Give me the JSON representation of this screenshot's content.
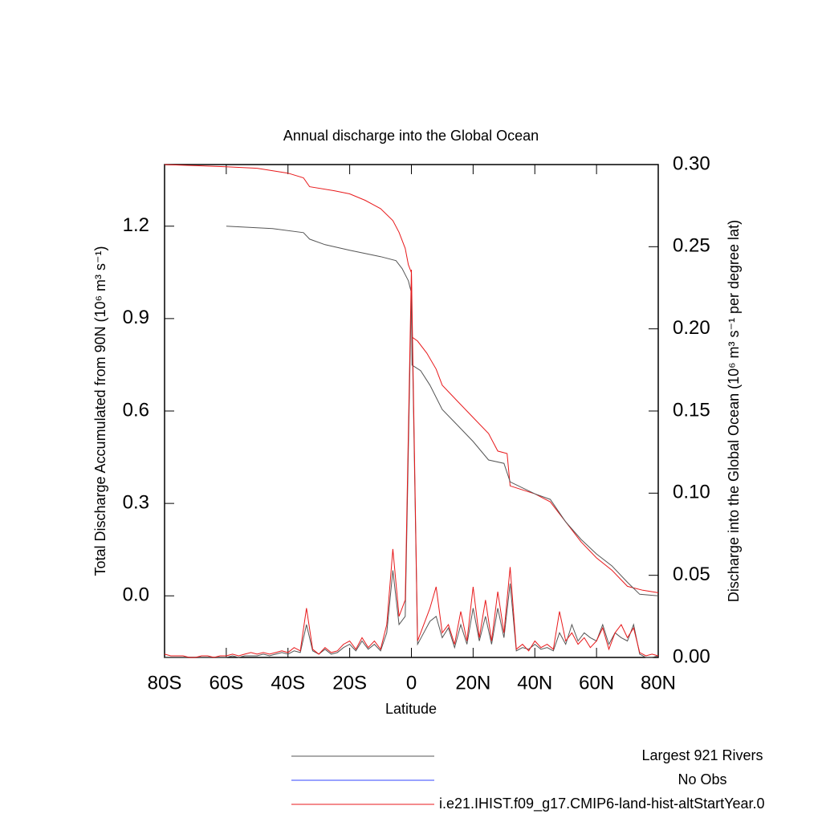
{
  "chart_data": {
    "type": "line",
    "title": "Annual discharge into the Global Ocean",
    "x_label": "Latitude",
    "y_label": "Total Discharge Accumulated from 90N (10⁶ m³ s⁻¹)",
    "y2_label": "Discharge into the Global Ocean (10⁶ m³ s⁻¹ per degree lat)",
    "xlim": [
      -80,
      80
    ],
    "xticks": [
      {
        "value": -80,
        "label": "80S"
      },
      {
        "value": -60,
        "label": "60S"
      },
      {
        "value": -40,
        "label": "40S"
      },
      {
        "value": -20,
        "label": "20S"
      },
      0,
      {
        "value": 20,
        "label": "20N"
      },
      {
        "value": 40,
        "label": "40N"
      },
      {
        "value": 60,
        "label": "60N"
      },
      {
        "value": 80,
        "label": "80N"
      }
    ],
    "ylim": [
      -0.2,
      1.4
    ],
    "yticks": [
      {
        "value": 0,
        "label": "0.0"
      },
      0.3,
      0.6,
      0.9,
      1.2
    ],
    "y2lim": [
      0,
      0.3
    ],
    "y2ticks": [
      {
        "value": 0,
        "label": "0.00"
      },
      0.05,
      {
        "value": 0.1,
        "label": "0.10"
      },
      0.15,
      {
        "value": 0.2,
        "label": "0.20"
      },
      0.25,
      {
        "value": 0.3,
        "label": "0.30"
      }
    ],
    "legend": [
      {
        "name": "Largest 921 Rivers",
        "color": "#555555"
      },
      {
        "name": "No Obs",
        "color": "#3344ff"
      },
      {
        "name": "i.e21.IHIST.f09_g17.CMIP6-land-hist-altStartYear.0",
        "color": "#e8191b"
      }
    ],
    "series": [
      {
        "color": "#e8191b",
        "axis": "y",
        "x": [
          -80,
          -60,
          -50,
          -40,
          -35,
          -33,
          -25,
          -20,
          -15,
          -10,
          -6,
          -4,
          -2,
          -1,
          0,
          0.2,
          2,
          5,
          8,
          10,
          15,
          20,
          25,
          28,
          31,
          32,
          40,
          45,
          50,
          55,
          60,
          65,
          70,
          75,
          80
        ],
        "values": [
          1.4,
          1.393,
          1.388,
          1.372,
          1.357,
          1.328,
          1.315,
          1.305,
          1.284,
          1.257,
          1.218,
          1.18,
          1.128,
          1.075,
          1.049,
          0.84,
          0.827,
          0.788,
          0.736,
          0.684,
          0.631,
          0.579,
          0.527,
          0.47,
          0.462,
          0.357,
          0.331,
          0.305,
          0.24,
          0.175,
          0.123,
          0.083,
          0.031,
          0.018,
          0.01
        ]
      },
      {
        "color": "#555555",
        "axis": "y",
        "x": [
          -60,
          -45,
          -35,
          -33,
          -28,
          -20,
          -10,
          -5,
          -3,
          -1,
          0,
          0.2,
          3,
          6,
          10,
          15,
          20,
          25,
          30,
          32,
          40,
          45,
          50,
          55,
          60,
          65,
          70,
          74,
          80
        ],
        "values": [
          1.2,
          1.192,
          1.179,
          1.158,
          1.14,
          1.122,
          1.101,
          1.088,
          1.062,
          1.023,
          0.984,
          0.749,
          0.731,
          0.684,
          0.605,
          0.553,
          0.501,
          0.441,
          0.43,
          0.37,
          0.331,
          0.313,
          0.24,
          0.183,
          0.136,
          0.097,
          0.044,
          0.005,
          0
        ]
      },
      {
        "color": "#555555",
        "axis": "y2",
        "x": [
          -80,
          -78,
          -76,
          -74,
          -72,
          -70,
          -68,
          -66,
          -64,
          -62,
          -60,
          -58,
          -56,
          -54,
          -52,
          -50,
          -48,
          -46,
          -44,
          -42,
          -40,
          -38,
          -36,
          -34,
          -32,
          -30,
          -28,
          -26,
          -24,
          -22,
          -20,
          -18,
          -16,
          -14,
          -12,
          -10,
          -8,
          -6,
          -4,
          -2,
          0,
          2,
          4,
          6,
          8,
          10,
          12,
          14,
          16,
          18,
          20,
          22,
          24,
          26,
          28,
          30,
          32,
          34,
          36,
          38,
          40,
          42,
          44,
          46,
          48,
          50,
          52,
          54,
          56,
          58,
          60,
          62,
          64,
          66,
          68,
          70,
          72,
          74,
          76,
          78,
          80
        ],
        "values": [
          0,
          0,
          0,
          0,
          0,
          0,
          0,
          0,
          0,
          0,
          0,
          0.001,
          0,
          0.001,
          0.001,
          0.001,
          0.002,
          0.001,
          0.002,
          0.003,
          0.002,
          0.004,
          0.003,
          0.02,
          0.004,
          0.002,
          0.005,
          0.002,
          0.003,
          0.006,
          0.008,
          0.004,
          0.01,
          0.005,
          0.008,
          0.004,
          0.015,
          0.053,
          0.02,
          0.025,
          0.224,
          0.008,
          0.015,
          0.022,
          0.025,
          0.012,
          0.018,
          0.006,
          0.02,
          0.008,
          0.03,
          0.01,
          0.025,
          0.008,
          0.03,
          0.012,
          0.045,
          0.004,
          0.006,
          0.005,
          0.008,
          0.005,
          0.006,
          0.004,
          0.015,
          0.008,
          0.02,
          0.01,
          0.015,
          0.012,
          0.01,
          0.02,
          0.008,
          0.015,
          0.012,
          0.01,
          0.02,
          0.002,
          0,
          0,
          0.001
        ]
      },
      {
        "color": "#e8191b",
        "axis": "y2",
        "x": [
          -80,
          -78,
          -76,
          -74,
          -72,
          -70,
          -68,
          -66,
          -64,
          -62,
          -60,
          -58,
          -56,
          -54,
          -52,
          -50,
          -48,
          -46,
          -44,
          -42,
          -40,
          -38,
          -36,
          -34,
          -32,
          -30,
          -28,
          -26,
          -24,
          -22,
          -20,
          -18,
          -16,
          -14,
          -12,
          -10,
          -8,
          -6,
          -4,
          -2,
          0,
          2,
          4,
          6,
          8,
          10,
          12,
          14,
          16,
          18,
          20,
          22,
          24,
          26,
          28,
          30,
          32,
          34,
          36,
          38,
          40,
          42,
          44,
          46,
          48,
          50,
          52,
          54,
          56,
          58,
          60,
          62,
          64,
          66,
          68,
          70,
          72,
          74,
          76,
          78,
          80
        ],
        "values": [
          0.002,
          0.001,
          0.001,
          0.001,
          0,
          0,
          0.001,
          0.001,
          0,
          0.001,
          0.001,
          0.002,
          0.001,
          0.002,
          0.003,
          0.002,
          0.003,
          0.002,
          0.003,
          0.004,
          0.003,
          0.006,
          0.004,
          0.03,
          0.005,
          0.002,
          0.006,
          0.003,
          0.004,
          0.008,
          0.01,
          0.005,
          0.012,
          0.006,
          0.01,
          0.005,
          0.02,
          0.066,
          0.025,
          0.035,
          0.236,
          0.01,
          0.02,
          0.03,
          0.043,
          0.015,
          0.02,
          0.008,
          0.028,
          0.01,
          0.043,
          0.012,
          0.035,
          0.01,
          0.04,
          0.015,
          0.055,
          0.005,
          0.008,
          0.004,
          0.01,
          0.006,
          0.008,
          0.005,
          0.028,
          0.01,
          0.015,
          0.008,
          0.012,
          0.006,
          0.01,
          0.018,
          0.005,
          0.015,
          0.02,
          0.012,
          0.018,
          0.003,
          0.001,
          0.002,
          0.001
        ]
      }
    ]
  }
}
